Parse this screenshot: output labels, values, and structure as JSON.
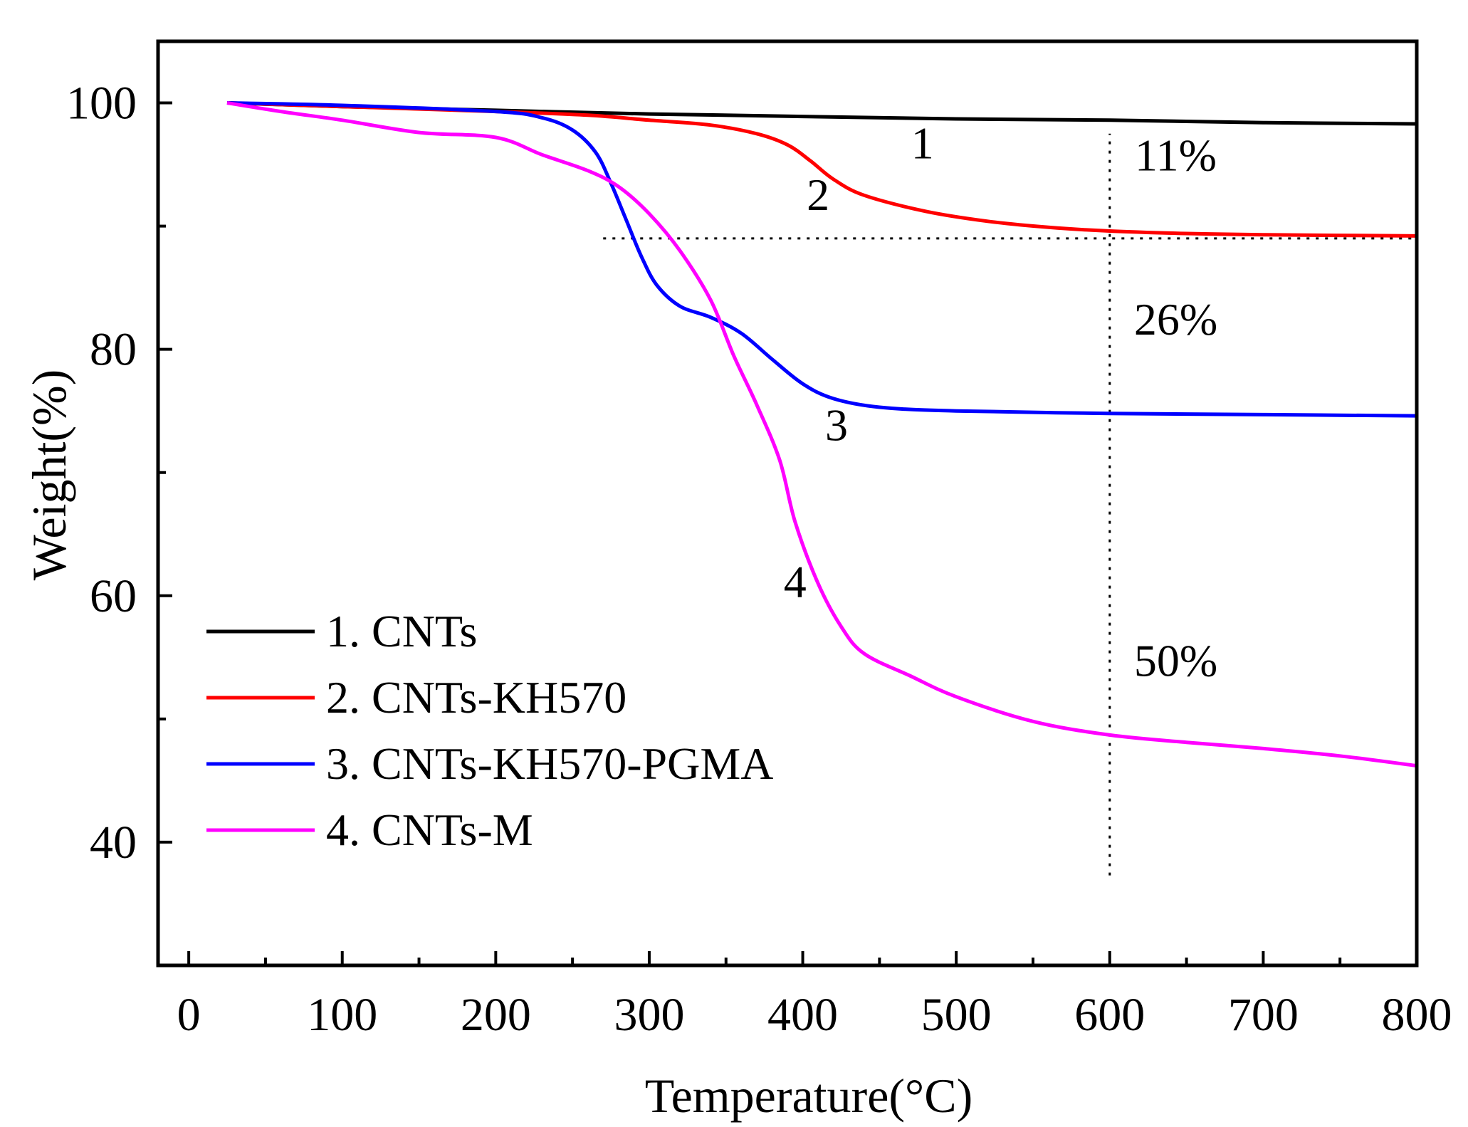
{
  "chart_data": {
    "type": "line",
    "xlabel": "Temperature(°C)",
    "ylabel": "Weight(%)",
    "xlim": [
      -20,
      800
    ],
    "ylim": [
      30,
      105
    ],
    "xticks": [
      "0",
      "100",
      "200",
      "300",
      "400",
      "500",
      "600",
      "700",
      "800"
    ],
    "yticks": [
      "40",
      "60",
      "80",
      "100"
    ],
    "legend_position": "bottom-left",
    "series": [
      {
        "name": "1. CNTs",
        "color": "#000000",
        "points": [
          [
            25,
            100
          ],
          [
            100,
            99.7
          ],
          [
            200,
            99.4
          ],
          [
            300,
            99.1
          ],
          [
            400,
            98.9
          ],
          [
            500,
            98.7
          ],
          [
            600,
            98.6
          ],
          [
            700,
            98.4
          ],
          [
            800,
            98.3
          ]
        ]
      },
      {
        "name": "2. CNTs-KH570",
        "color": "#ff0000",
        "points": [
          [
            25,
            100
          ],
          [
            100,
            99.7
          ],
          [
            200,
            99.3
          ],
          [
            260,
            99.0
          ],
          [
            300,
            98.6
          ],
          [
            340,
            98.2
          ],
          [
            370,
            97.5
          ],
          [
            390,
            96.6
          ],
          [
            405,
            95.3
          ],
          [
            420,
            93.8
          ],
          [
            440,
            92.5
          ],
          [
            480,
            91.2
          ],
          [
            520,
            90.4
          ],
          [
            560,
            89.9
          ],
          [
            600,
            89.6
          ],
          [
            650,
            89.4
          ],
          [
            700,
            89.3
          ],
          [
            800,
            89.2
          ]
        ]
      },
      {
        "name": "3. CNTs-KH570-PGMA",
        "color": "#0000ff",
        "points": [
          [
            25,
            100
          ],
          [
            100,
            99.8
          ],
          [
            200,
            99.3
          ],
          [
            230,
            98.8
          ],
          [
            250,
            97.8
          ],
          [
            265,
            96.0
          ],
          [
            275,
            93.5
          ],
          [
            285,
            90.5
          ],
          [
            295,
            87.5
          ],
          [
            305,
            85.2
          ],
          [
            320,
            83.5
          ],
          [
            340,
            82.6
          ],
          [
            360,
            81.3
          ],
          [
            380,
            79.2
          ],
          [
            400,
            77.2
          ],
          [
            420,
            76.0
          ],
          [
            450,
            75.3
          ],
          [
            500,
            75.0
          ],
          [
            600,
            74.8
          ],
          [
            700,
            74.7
          ],
          [
            800,
            74.6
          ]
        ]
      },
      {
        "name": "4. CNTs-M",
        "color": "#ff00ff",
        "points": [
          [
            25,
            100
          ],
          [
            60,
            99.3
          ],
          [
            100,
            98.6
          ],
          [
            150,
            97.6
          ],
          [
            200,
            97.2
          ],
          [
            230,
            95.8
          ],
          [
            260,
            94.5
          ],
          [
            280,
            93.2
          ],
          [
            300,
            91.0
          ],
          [
            320,
            88.0
          ],
          [
            340,
            84.0
          ],
          [
            355,
            79.5
          ],
          [
            370,
            75.5
          ],
          [
            385,
            71.0
          ],
          [
            395,
            66.0
          ],
          [
            410,
            61.0
          ],
          [
            425,
            57.5
          ],
          [
            440,
            55.3
          ],
          [
            470,
            53.5
          ],
          [
            500,
            51.8
          ],
          [
            550,
            49.8
          ],
          [
            600,
            48.7
          ],
          [
            650,
            48.1
          ],
          [
            700,
            47.6
          ],
          [
            750,
            47.0
          ],
          [
            800,
            46.2
          ]
        ]
      }
    ],
    "curve_labels": [
      {
        "text": "1",
        "x": 478,
        "y": 95.5
      },
      {
        "text": "2",
        "x": 410,
        "y": 91.3
      },
      {
        "text": "3",
        "x": 422,
        "y": 72.6
      },
      {
        "text": "4",
        "x": 395,
        "y": 59.9
      }
    ],
    "annotations": [
      {
        "text": "11%",
        "x": 643,
        "y": 94.5
      },
      {
        "text": "26%",
        "x": 643,
        "y": 81.2
      },
      {
        "text": "50%",
        "x": 643,
        "y": 53.5
      }
    ],
    "reference_lines": {
      "horizontal": {
        "y": 89.0,
        "x_from": 270,
        "x_to": 800
      },
      "vertical": {
        "x": 600,
        "y_from": 37.3,
        "y_to": 97.5
      }
    }
  }
}
